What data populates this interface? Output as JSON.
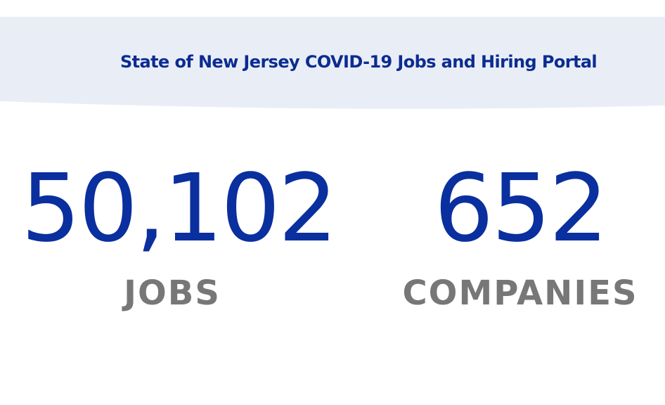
{
  "colors": {
    "banner_background": "#e9eef6",
    "title_text": "#0c2c91",
    "stat_value": "#0a2f9e",
    "stat_label": "#777777",
    "page_background": "#ffffff"
  },
  "header": {
    "title": "State of New Jersey COVID-19 Jobs and Hiring Portal"
  },
  "stats": {
    "jobs": {
      "value": "50,102",
      "label": "JOBS"
    },
    "companies": {
      "value": "652",
      "label": "COMPANIES"
    }
  }
}
